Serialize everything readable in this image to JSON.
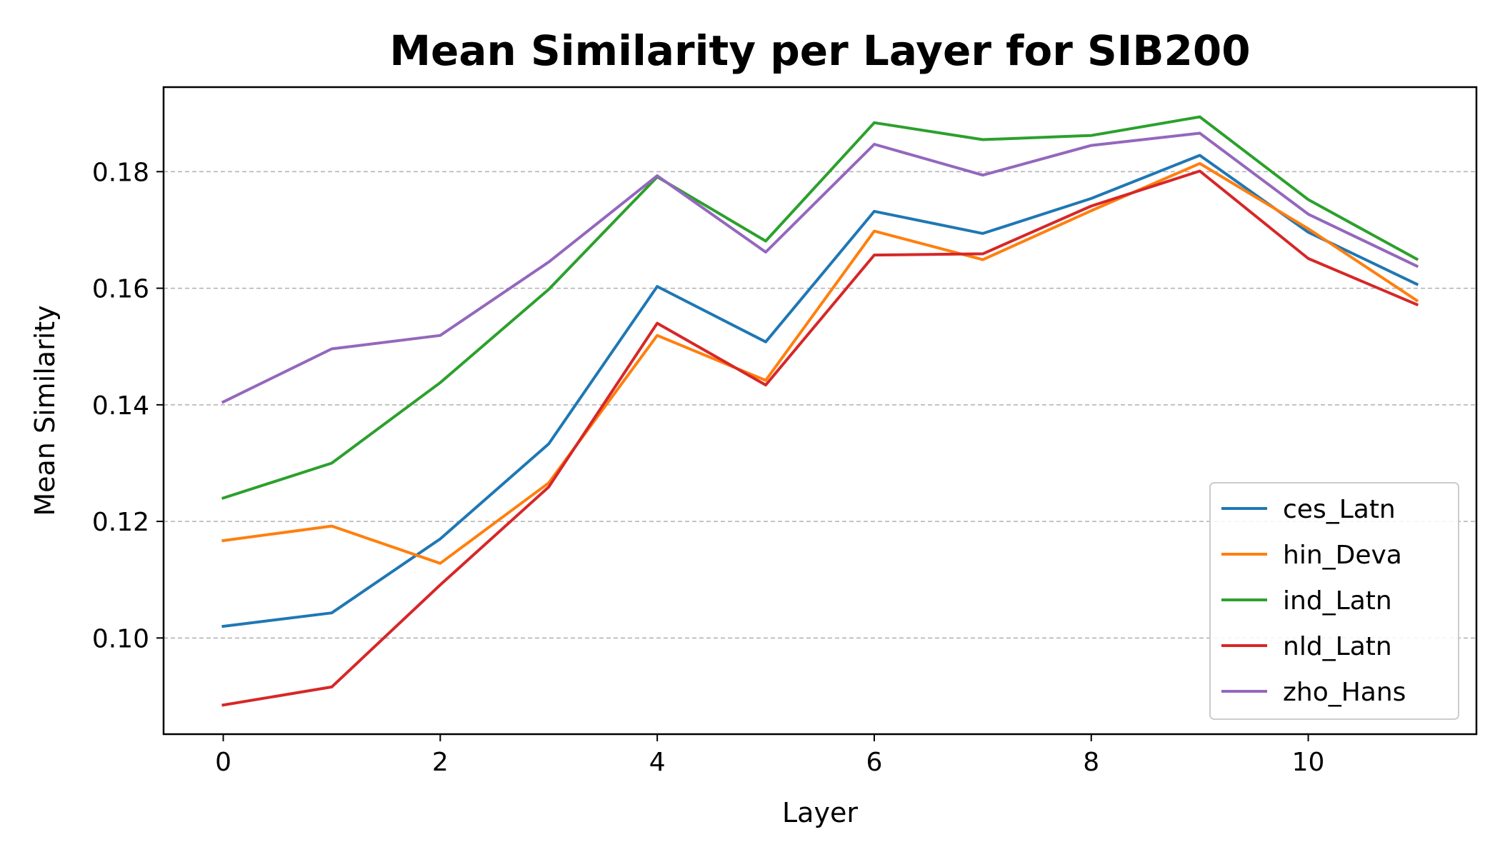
{
  "chart_data": {
    "type": "line",
    "title": "Mean Similarity per Layer for SIB200",
    "xlabel": "Layer",
    "ylabel": "Mean Similarity",
    "x": [
      0,
      1,
      2,
      3,
      4,
      5,
      6,
      7,
      8,
      9,
      10,
      11
    ],
    "xlim": [
      -0.55,
      11.55
    ],
    "ylim": [
      0.0835,
      0.1945
    ],
    "xticks": [
      0,
      2,
      4,
      6,
      8,
      10
    ],
    "xtick_labels": [
      "0",
      "2",
      "4",
      "6",
      "8",
      "10"
    ],
    "yticks": [
      0.1,
      0.12,
      0.14,
      0.16,
      0.18
    ],
    "ytick_labels": [
      "0.10",
      "0.12",
      "0.14",
      "0.16",
      "0.18"
    ],
    "grid": "y-dashed",
    "legend_position": "lower-right",
    "series": [
      {
        "name": "ces_Latn",
        "color": "#1f77b4",
        "values": [
          0.102,
          0.1043,
          0.117,
          0.1333,
          0.1603,
          0.1508,
          0.1732,
          0.1694,
          0.1754,
          0.1828,
          0.1696,
          0.1607
        ]
      },
      {
        "name": "hin_Deva",
        "color": "#ff7f0e",
        "values": [
          0.1167,
          0.1192,
          0.1128,
          0.1266,
          0.1519,
          0.1442,
          0.1698,
          0.1649,
          0.1733,
          0.1814,
          0.1702,
          0.1579
        ]
      },
      {
        "name": "ind_Latn",
        "color": "#2ca02c",
        "values": [
          0.124,
          0.13,
          0.1438,
          0.1598,
          0.1791,
          0.1681,
          0.1884,
          0.1855,
          0.1862,
          0.1894,
          0.1752,
          0.165
        ]
      },
      {
        "name": "nld_Latn",
        "color": "#d62728",
        "values": [
          0.0885,
          0.0916,
          0.1091,
          0.1259,
          0.154,
          0.1434,
          0.1657,
          0.1659,
          0.1741,
          0.1801,
          0.1651,
          0.1572
        ]
      },
      {
        "name": "zho_Hans",
        "color": "#9467bd",
        "values": [
          0.1405,
          0.1496,
          0.1519,
          0.1645,
          0.1793,
          0.1662,
          0.1847,
          0.1794,
          0.1845,
          0.1866,
          0.1727,
          0.1638
        ]
      }
    ]
  }
}
